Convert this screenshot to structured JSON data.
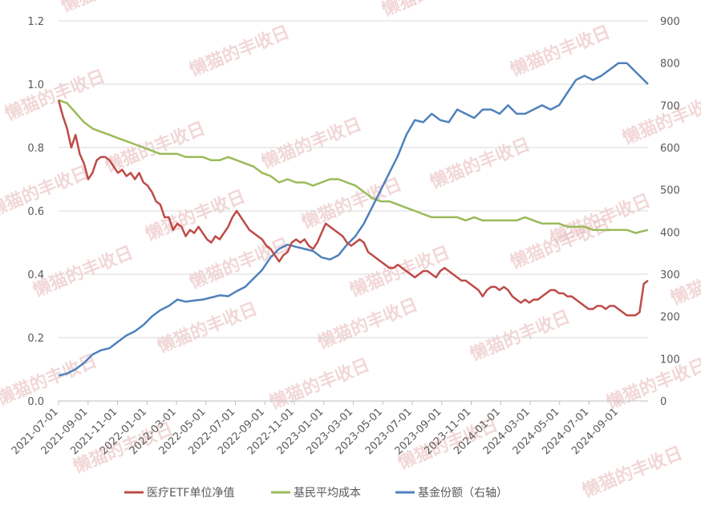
{
  "watermark": "懒猫的丰收日",
  "chart_data": {
    "type": "line",
    "title": "",
    "grid": true,
    "legend_position": "bottom",
    "y_left": {
      "min": 0,
      "max": 1.2,
      "ticks": [
        "0.0",
        "0.2",
        "0.4",
        "0.6",
        "0.8",
        "1.0",
        "1.2"
      ]
    },
    "y_right": {
      "min": 0,
      "max": 900,
      "ticks": [
        "0",
        "100",
        "200",
        "300",
        "400",
        "500",
        "600",
        "700",
        "800",
        "900"
      ]
    },
    "x_ticks": [
      "2021-07-01",
      "2021-09-01",
      "2021-11-01",
      "2022-01-01",
      "2022-03-01",
      "2022-05-01",
      "2022-07-01",
      "2022-09-01",
      "2022-11-01",
      "2023-01-01",
      "2023-03-01",
      "2023-05-01",
      "2023-07-01",
      "2023-09-01",
      "2023-11-01",
      "2024-01-01",
      "2024-03-01",
      "2024-05-01",
      "2024-07-01",
      "2024-09-01"
    ],
    "series": [
      {
        "name": "医疗ETF单位净值",
        "color": "#be4b48",
        "axis": "left",
        "x": [
          0,
          1,
          2,
          3,
          4,
          5,
          6,
          7,
          8,
          9,
          10,
          11,
          12,
          13,
          14,
          15,
          16,
          17,
          18,
          19,
          20,
          21,
          22,
          23,
          24,
          25,
          26,
          27,
          28,
          29,
          30,
          31,
          32,
          33,
          34,
          35,
          36,
          37,
          38,
          39,
          40,
          41,
          42,
          43,
          44,
          45,
          46,
          47,
          48,
          49,
          50,
          51,
          52,
          53,
          54,
          55,
          56,
          57,
          58,
          59,
          60,
          61,
          62,
          63,
          64,
          65,
          66,
          67,
          68,
          69,
          70,
          71,
          72,
          73,
          74,
          75,
          76,
          77,
          78,
          79,
          80,
          81,
          82,
          83,
          84,
          85,
          86,
          87,
          88,
          89,
          90,
          91,
          92,
          93,
          94,
          95,
          96,
          97,
          98,
          99,
          100,
          101,
          102,
          103,
          104,
          105,
          106,
          107,
          108,
          109,
          110,
          111,
          112,
          113,
          114,
          115,
          116,
          117,
          118,
          119,
          120,
          121,
          122,
          123,
          124,
          125,
          126,
          127,
          128,
          129,
          130,
          131,
          132,
          133,
          134,
          135,
          136,
          137,
          138,
          139
        ],
        "values": [
          0.95,
          0.9,
          0.86,
          0.8,
          0.84,
          0.78,
          0.75,
          0.7,
          0.72,
          0.76,
          0.77,
          0.77,
          0.76,
          0.74,
          0.72,
          0.73,
          0.71,
          0.72,
          0.7,
          0.72,
          0.69,
          0.68,
          0.66,
          0.63,
          0.62,
          0.58,
          0.58,
          0.54,
          0.56,
          0.55,
          0.52,
          0.54,
          0.53,
          0.55,
          0.53,
          0.51,
          0.5,
          0.52,
          0.51,
          0.53,
          0.55,
          0.58,
          0.6,
          0.58,
          0.56,
          0.54,
          0.53,
          0.52,
          0.51,
          0.49,
          0.48,
          0.46,
          0.44,
          0.46,
          0.47,
          0.5,
          0.51,
          0.5,
          0.51,
          0.49,
          0.48,
          0.5,
          0.53,
          0.56,
          0.55,
          0.54,
          0.53,
          0.52,
          0.5,
          0.49,
          0.5,
          0.51,
          0.5,
          0.47,
          0.46,
          0.45,
          0.44,
          0.43,
          0.42,
          0.42,
          0.43,
          0.42,
          0.41,
          0.4,
          0.39,
          0.4,
          0.41,
          0.41,
          0.4,
          0.39,
          0.41,
          0.42,
          0.41,
          0.4,
          0.39,
          0.38,
          0.38,
          0.37,
          0.36,
          0.35,
          0.33,
          0.35,
          0.36,
          0.36,
          0.35,
          0.36,
          0.35,
          0.33,
          0.32,
          0.31,
          0.32,
          0.31,
          0.32,
          0.32,
          0.33,
          0.34,
          0.35,
          0.35,
          0.34,
          0.34,
          0.33,
          0.33,
          0.32,
          0.31,
          0.3,
          0.29,
          0.29,
          0.3,
          0.3,
          0.29,
          0.3,
          0.3,
          0.29,
          0.28,
          0.27,
          0.27,
          0.27,
          0.28,
          0.37,
          0.38
        ]
      },
      {
        "name": "基民平均成本",
        "color": "#9bbb59",
        "axis": "left",
        "x": [
          0,
          2,
          4,
          6,
          8,
          10,
          12,
          14,
          16,
          18,
          20,
          22,
          24,
          26,
          28,
          30,
          32,
          34,
          36,
          38,
          40,
          42,
          44,
          46,
          48,
          50,
          52,
          54,
          56,
          58,
          60,
          62,
          64,
          66,
          68,
          70,
          72,
          74,
          76,
          78,
          80,
          82,
          84,
          86,
          88,
          90,
          92,
          94,
          96,
          98,
          100,
          102,
          104,
          106,
          108,
          110,
          112,
          114,
          116,
          118,
          120,
          122,
          124,
          126,
          128,
          130,
          132,
          134,
          136,
          139
        ],
        "values": [
          0.95,
          0.94,
          0.91,
          0.88,
          0.86,
          0.85,
          0.84,
          0.83,
          0.82,
          0.81,
          0.8,
          0.79,
          0.78,
          0.78,
          0.78,
          0.77,
          0.77,
          0.77,
          0.76,
          0.76,
          0.77,
          0.76,
          0.75,
          0.74,
          0.72,
          0.71,
          0.69,
          0.7,
          0.69,
          0.69,
          0.68,
          0.69,
          0.7,
          0.7,
          0.69,
          0.68,
          0.66,
          0.64,
          0.63,
          0.63,
          0.62,
          0.61,
          0.6,
          0.59,
          0.58,
          0.58,
          0.58,
          0.58,
          0.57,
          0.58,
          0.57,
          0.57,
          0.57,
          0.57,
          0.57,
          0.58,
          0.57,
          0.56,
          0.56,
          0.56,
          0.55,
          0.55,
          0.55,
          0.54,
          0.54,
          0.54,
          0.54,
          0.54,
          0.53,
          0.54
        ]
      },
      {
        "name": "基金份额（右轴）",
        "color": "#4f81bd",
        "axis": "right",
        "x": [
          0,
          2,
          4,
          6,
          8,
          10,
          12,
          14,
          16,
          18,
          20,
          22,
          24,
          26,
          28,
          30,
          32,
          34,
          36,
          38,
          40,
          42,
          44,
          46,
          48,
          50,
          52,
          54,
          56,
          58,
          60,
          62,
          64,
          66,
          68,
          70,
          72,
          74,
          76,
          78,
          80,
          82,
          84,
          86,
          88,
          90,
          92,
          94,
          96,
          98,
          100,
          102,
          104,
          106,
          108,
          110,
          112,
          114,
          116,
          118,
          120,
          122,
          124,
          126,
          128,
          130,
          132,
          134,
          136,
          139
        ],
        "values": [
          60,
          65,
          75,
          90,
          110,
          120,
          125,
          140,
          155,
          165,
          180,
          200,
          215,
          225,
          240,
          235,
          238,
          240,
          245,
          250,
          248,
          260,
          270,
          290,
          310,
          340,
          360,
          370,
          365,
          360,
          355,
          340,
          335,
          345,
          370,
          390,
          420,
          460,
          500,
          540,
          580,
          630,
          665,
          660,
          680,
          665,
          660,
          690,
          680,
          670,
          690,
          690,
          680,
          700,
          680,
          680,
          690,
          700,
          690,
          700,
          730,
          760,
          770,
          760,
          770,
          785,
          800,
          800,
          780,
          750
        ]
      }
    ]
  }
}
